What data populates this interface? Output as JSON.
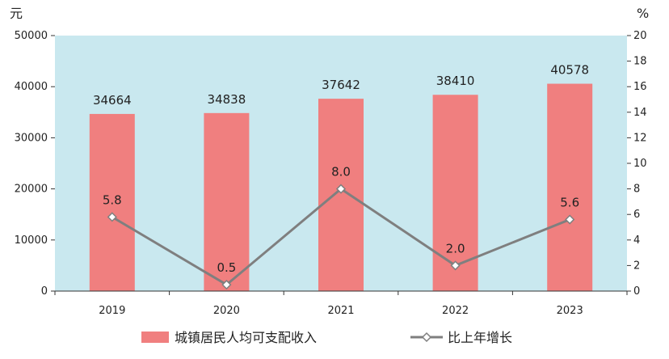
{
  "chart_data": {
    "type": "bar",
    "categories": [
      "2019",
      "2020",
      "2021",
      "2022",
      "2023"
    ],
    "series": [
      {
        "name": "城镇居民人均可支配收入",
        "type": "bar",
        "axis": "left",
        "values": [
          34664,
          34838,
          37642,
          38410,
          40578
        ],
        "color": "#f07f7f"
      },
      {
        "name": "比上年增长",
        "type": "line",
        "axis": "right",
        "values": [
          5.8,
          0.5,
          8.0,
          2.0,
          5.6
        ],
        "value_labels": [
          "5.8",
          "0.5",
          "8.0",
          "2.0",
          "5.6"
        ],
        "color": "#7f7f7f"
      }
    ],
    "left_axis": {
      "unit": "元",
      "ylim": [
        0,
        50000
      ],
      "ticks": [
        "0",
        "10000",
        "20000",
        "30000",
        "40000",
        "50000"
      ]
    },
    "right_axis": {
      "unit": "%",
      "ylim": [
        0,
        20
      ],
      "ticks": [
        "0",
        "2",
        "4",
        "6",
        "8",
        "10",
        "12",
        "14",
        "16",
        "18",
        "20"
      ]
    },
    "plot_background": "#c9e8ef",
    "legend_position": "bottom"
  }
}
